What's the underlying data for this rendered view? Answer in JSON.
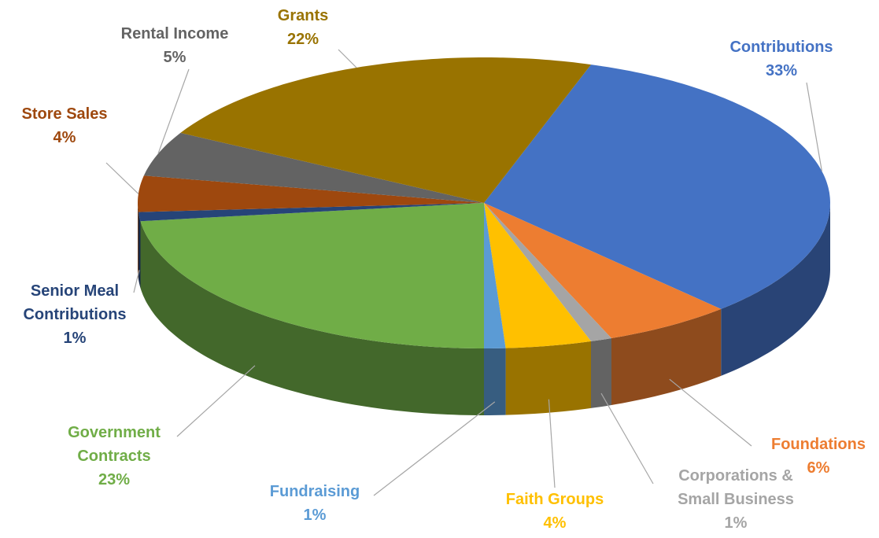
{
  "chart_data": {
    "type": "pie",
    "categories": [
      "Contributions",
      "Foundations",
      "Corporations & Small Business",
      "Faith Groups",
      "Fundraising",
      "Government Contracts",
      "Senior Meal Contributions",
      "Store Sales",
      "Rental Income",
      "Grants"
    ],
    "values": [
      33,
      6,
      1,
      4,
      1,
      23,
      1,
      4,
      5,
      22
    ],
    "value_labels": [
      "33%",
      "6%",
      "1%",
      "4%",
      "1%",
      "23%",
      "1%",
      "4%",
      "5%",
      "22%"
    ],
    "colors": [
      "#4472c4",
      "#ed7d31",
      "#a5a5a5",
      "#ffc000",
      "#5b9bd5",
      "#70ad47",
      "#264478",
      "#9e480e",
      "#636363",
      "#997300"
    ]
  }
}
